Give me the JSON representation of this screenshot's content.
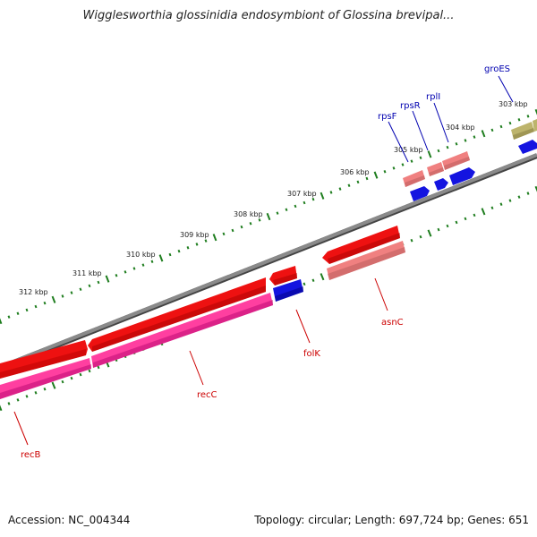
{
  "title": "Wigglesworthia glossinidia endosymbiont of Glossina brevipal...",
  "footer": {
    "accession": "Accession: NC_004344",
    "stats": "Topology: circular; Length: 697,724 bp; Genes: 651"
  },
  "colors": {
    "backbone": "#7f7f7f",
    "tick": "#1e7d1e",
    "gene_red": "#ee1111",
    "gene_pink": "#ff3fa0",
    "gene_salmon": "#f07f7f",
    "gene_blue": "#1414e0",
    "gene_olive": "#bdb46c",
    "label_red": "#cc0000",
    "label_blue": "#0000b0"
  },
  "kbp_labels": [
    "303 kbp",
    "304 kbp",
    "305 kbp",
    "306 kbp",
    "307 kbp",
    "308 kbp",
    "309 kbp",
    "310 kbp",
    "311 kbp",
    "312 kbp"
  ],
  "genes": [
    {
      "name": "groES",
      "label_color": "blue"
    },
    {
      "name": "rplI",
      "label_color": "blue"
    },
    {
      "name": "rpsR",
      "label_color": "blue"
    },
    {
      "name": "rpsF",
      "label_color": "blue"
    },
    {
      "name": "asnC",
      "label_color": "red"
    },
    {
      "name": "folK",
      "label_color": "red"
    },
    {
      "name": "recC",
      "label_color": "red"
    },
    {
      "name": "recB",
      "label_color": "red"
    }
  ]
}
